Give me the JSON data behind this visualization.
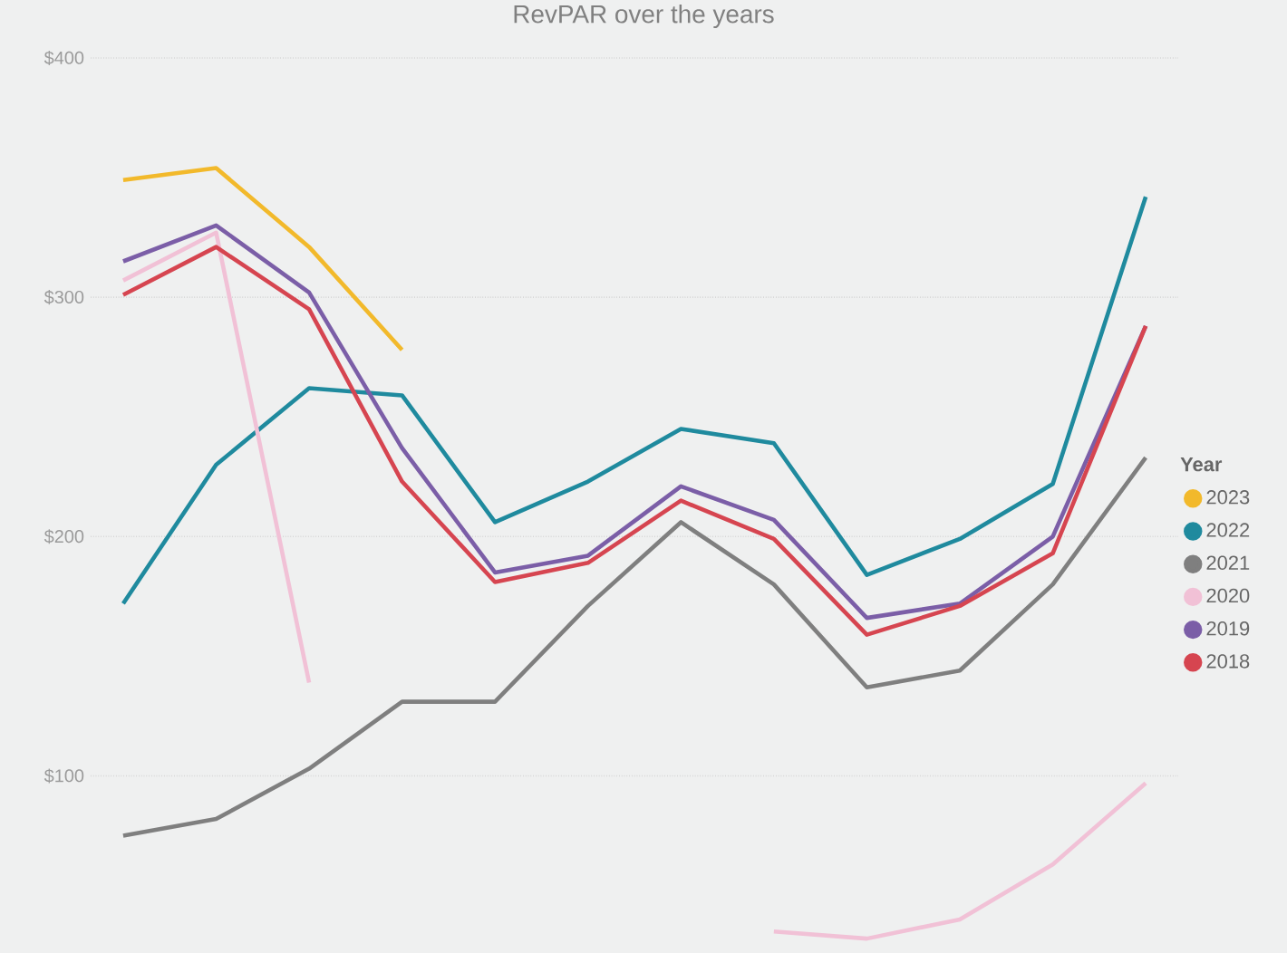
{
  "chart_data": {
    "type": "line",
    "title": "RevPAR over the years",
    "legend_title": "Year",
    "categories": [
      null,
      null,
      null,
      null,
      null,
      null,
      null,
      null,
      null,
      null,
      null,
      null
    ],
    "series": [
      {
        "name": "2023",
        "color": "#f2b92b",
        "values": [
          349,
          354,
          321,
          278,
          null,
          null,
          null,
          null,
          null,
          null,
          null,
          null
        ]
      },
      {
        "name": "2022",
        "color": "#1f8a9e",
        "values": [
          172,
          230,
          262,
          259,
          206,
          223,
          245,
          239,
          184,
          199,
          222,
          342
        ]
      },
      {
        "name": "2021",
        "color": "#7f7f7f",
        "values": [
          75,
          82,
          103,
          131,
          131,
          171,
          206,
          180,
          137,
          144,
          180,
          233
        ]
      },
      {
        "name": "2020",
        "color": "#f1c1d6",
        "values": [
          307,
          327,
          139,
          null,
          null,
          null,
          null,
          35,
          32,
          40,
          63,
          97
        ]
      },
      {
        "name": "2019",
        "color": "#7b5ea7",
        "values": [
          315,
          330,
          302,
          237,
          185,
          192,
          221,
          207,
          166,
          172,
          200,
          288
        ]
      },
      {
        "name": "2018",
        "color": "#d64550",
        "values": [
          301,
          321,
          295,
          223,
          181,
          189,
          215,
          199,
          159,
          171,
          193,
          288
        ]
      }
    ],
    "ylim": [
      26,
      400
    ],
    "yticks": [
      {
        "value": 100,
        "label": "$100"
      },
      {
        "value": 200,
        "label": "$200"
      },
      {
        "value": 300,
        "label": "$300"
      },
      {
        "value": 400,
        "label": "$400"
      }
    ],
    "grid": "y",
    "legend": "right"
  }
}
